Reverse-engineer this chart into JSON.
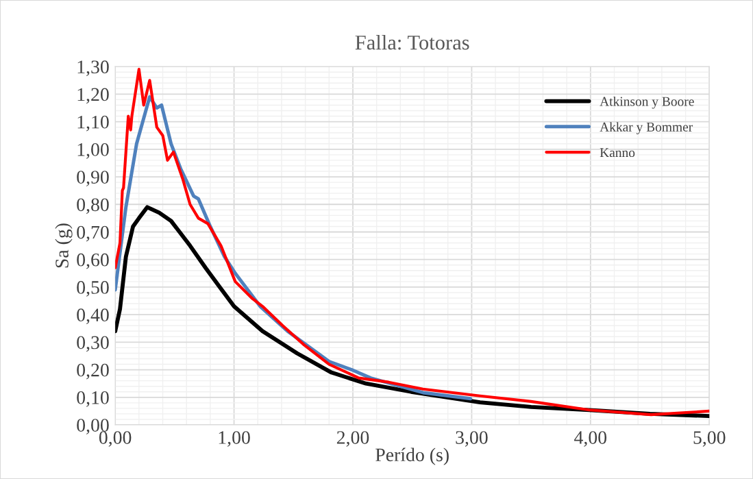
{
  "chart_data": {
    "type": "line",
    "title": "Falla: Totoras",
    "xlabel": "Perído (s)",
    "ylabel": "Sa (g)",
    "xlim": [
      0,
      5
    ],
    "ylim": [
      0,
      1.3
    ],
    "xticks": [
      {
        "value": 0,
        "label": "0,00"
      },
      {
        "value": 1,
        "label": "1,00"
      },
      {
        "value": 2,
        "label": "2,00"
      },
      {
        "value": 3,
        "label": "3,00"
      },
      {
        "value": 4,
        "label": "4,00"
      },
      {
        "value": 5,
        "label": "5,00"
      }
    ],
    "yticks": [
      {
        "value": 0,
        "label": "0,00"
      },
      {
        "value": 0.1,
        "label": "0,10"
      },
      {
        "value": 0.2,
        "label": "0,20"
      },
      {
        "value": 0.3,
        "label": "0,30"
      },
      {
        "value": 0.4,
        "label": "0,40"
      },
      {
        "value": 0.5,
        "label": "0,50"
      },
      {
        "value": 0.6,
        "label": "0,60"
      },
      {
        "value": 0.7,
        "label": "0,70"
      },
      {
        "value": 0.8,
        "label": "0,80"
      },
      {
        "value": 0.9,
        "label": "0,90"
      },
      {
        "value": 1.0,
        "label": "1,00"
      },
      {
        "value": 1.1,
        "label": "1,10"
      },
      {
        "value": 1.2,
        "label": "1,20"
      },
      {
        "value": 1.3,
        "label": "1,30"
      }
    ],
    "grid": true,
    "legend": "top right",
    "marker": "none",
    "line_style": "solid",
    "series": [
      {
        "name": "Atkinson y Boore",
        "color": "#000000",
        "x": [
          0,
          0.04,
          0.09,
          0.15,
          0.2,
          0.27,
          0.37,
          0.47,
          0.63,
          0.76,
          0.88,
          1.0,
          1.24,
          1.53,
          1.82,
          2.11,
          2.49,
          3.07,
          3.5,
          3.99,
          4.5,
          5.0
        ],
        "values": [
          0.34,
          0.42,
          0.61,
          0.72,
          0.75,
          0.79,
          0.77,
          0.74,
          0.65,
          0.57,
          0.5,
          0.43,
          0.34,
          0.26,
          0.19,
          0.15,
          0.12,
          0.082,
          0.065,
          0.054,
          0.04,
          0.032
        ]
      },
      {
        "name": "Akkar y Bommer",
        "color": "#4f81bd",
        "x": [
          0,
          0.09,
          0.18,
          0.29,
          0.35,
          0.39,
          0.47,
          0.55,
          0.66,
          0.7,
          0.8,
          0.92,
          1.01,
          1.22,
          1.45,
          1.8,
          1.99,
          2.15,
          2.59,
          2.99
        ],
        "values": [
          0.49,
          0.79,
          1.02,
          1.19,
          1.15,
          1.16,
          1.02,
          0.93,
          0.83,
          0.82,
          0.72,
          0.61,
          0.55,
          0.43,
          0.34,
          0.23,
          0.2,
          0.17,
          0.117,
          0.095
        ]
      },
      {
        "name": "Kanno",
        "color": "#ff0000",
        "x": [
          0,
          0.04,
          0.06,
          0.07,
          0.11,
          0.13,
          0.14,
          0.2,
          0.24,
          0.29,
          0.35,
          0.4,
          0.44,
          0.49,
          0.57,
          0.63,
          0.7,
          0.78,
          0.89,
          1.01,
          1.15,
          1.24,
          1.41,
          1.59,
          1.8,
          2.05,
          2.3,
          2.59,
          3.07,
          3.5,
          3.99,
          4.51,
          5.0
        ],
        "values": [
          0.57,
          0.66,
          0.85,
          0.86,
          1.12,
          1.07,
          1.12,
          1.29,
          1.16,
          1.25,
          1.08,
          1.05,
          0.96,
          0.99,
          0.89,
          0.8,
          0.75,
          0.73,
          0.65,
          0.52,
          0.46,
          0.43,
          0.36,
          0.29,
          0.22,
          0.17,
          0.155,
          0.13,
          0.105,
          0.085,
          0.054,
          0.037,
          0.05
        ]
      }
    ]
  }
}
